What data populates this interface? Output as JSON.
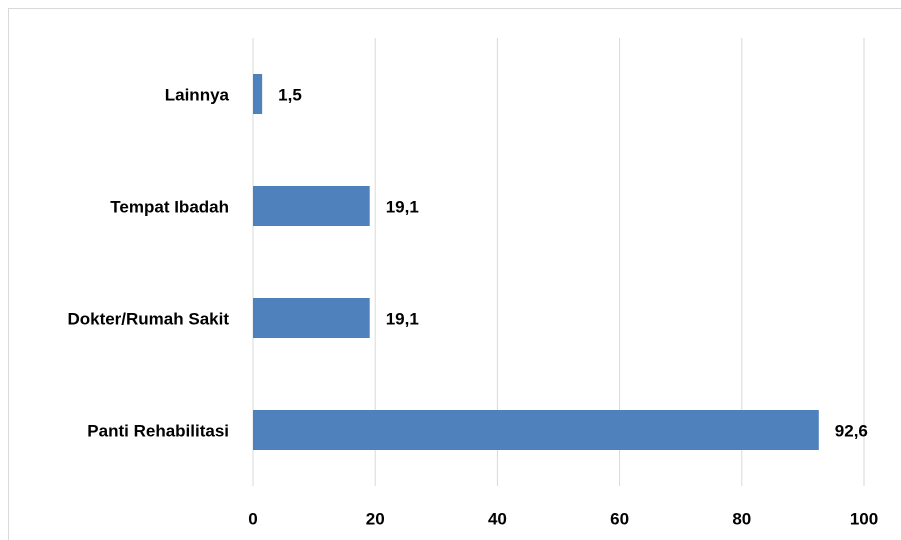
{
  "chart_data": {
    "type": "bar",
    "orientation": "horizontal",
    "categories": [
      "Lainnya",
      "Tempat Ibadah",
      "Dokter/Rumah Sakit",
      "Panti Rehabilitasi"
    ],
    "values": [
      1.5,
      19.1,
      19.1,
      92.6
    ],
    "value_labels": [
      "1,5",
      "19,1",
      "19,1",
      "92,6"
    ],
    "color": "#4f81bd",
    "xlim": [
      0,
      100
    ],
    "xticks": [
      0,
      20,
      40,
      60,
      80,
      100
    ],
    "grid": true
  }
}
